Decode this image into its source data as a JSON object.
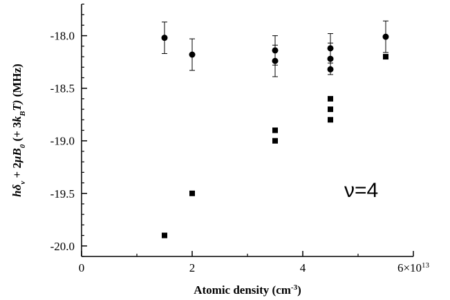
{
  "chart_data": {
    "type": "scatter",
    "xlabel": {
      "main": "Atomic density (cm",
      "sup": "-3",
      "tail": ")"
    },
    "ylabel": {
      "italic_h_delta": "hδ",
      "sub_v": "v",
      "plus": " + 2",
      "mu_b": "μB",
      "sub_0": "0",
      "paren_open": " (+ 3",
      "k": "k",
      "sub_b": "B",
      "t_close": "T)",
      "unit": " (MHz)"
    },
    "xlim": [
      0,
      60000000000000.0
    ],
    "ylim": [
      -20.1,
      -17.7
    ],
    "x_ticks": [
      {
        "value": 0,
        "label": "0"
      },
      {
        "value": 20000000000000.0,
        "label": "2"
      },
      {
        "value": 40000000000000.0,
        "label": "4"
      },
      {
        "value": 60000000000000.0,
        "label": "6×10",
        "sup": "13"
      }
    ],
    "y_ticks": [
      {
        "value": -18.0,
        "label": "-18.0"
      },
      {
        "value": -18.5,
        "label": "-18.5"
      },
      {
        "value": -19.0,
        "label": "-19.0"
      },
      {
        "value": -19.5,
        "label": "-19.5"
      },
      {
        "value": -20.0,
        "label": "-20.0"
      }
    ],
    "annotation": "ν=4",
    "series": [
      {
        "marker": "circle",
        "points": [
          {
            "x": 15000000000000.0,
            "y": -18.02,
            "err": 0.15
          },
          {
            "x": 20000000000000.0,
            "y": -18.18,
            "err": 0.15
          },
          {
            "x": 35000000000000.0,
            "y": -18.14,
            "err": 0.14
          },
          {
            "x": 35000000000000.0,
            "y": -18.24,
            "err": 0.15
          },
          {
            "x": 45000000000000.0,
            "y": -18.12,
            "err": 0.14
          },
          {
            "x": 45000000000000.0,
            "y": -18.22,
            "err": 0.15
          },
          {
            "x": 45000000000000.0,
            "y": -18.32
          },
          {
            "x": 55000000000000.0,
            "y": -18.01,
            "err": 0.15
          }
        ]
      },
      {
        "marker": "square",
        "points": [
          {
            "x": 15000000000000.0,
            "y": -19.9
          },
          {
            "x": 20000000000000.0,
            "y": -19.5
          },
          {
            "x": 35000000000000.0,
            "y": -18.9
          },
          {
            "x": 35000000000000.0,
            "y": -19.0
          },
          {
            "x": 45000000000000.0,
            "y": -18.6
          },
          {
            "x": 45000000000000.0,
            "y": -18.7
          },
          {
            "x": 45000000000000.0,
            "y": -18.8
          },
          {
            "x": 55000000000000.0,
            "y": -18.2
          }
        ]
      }
    ]
  }
}
